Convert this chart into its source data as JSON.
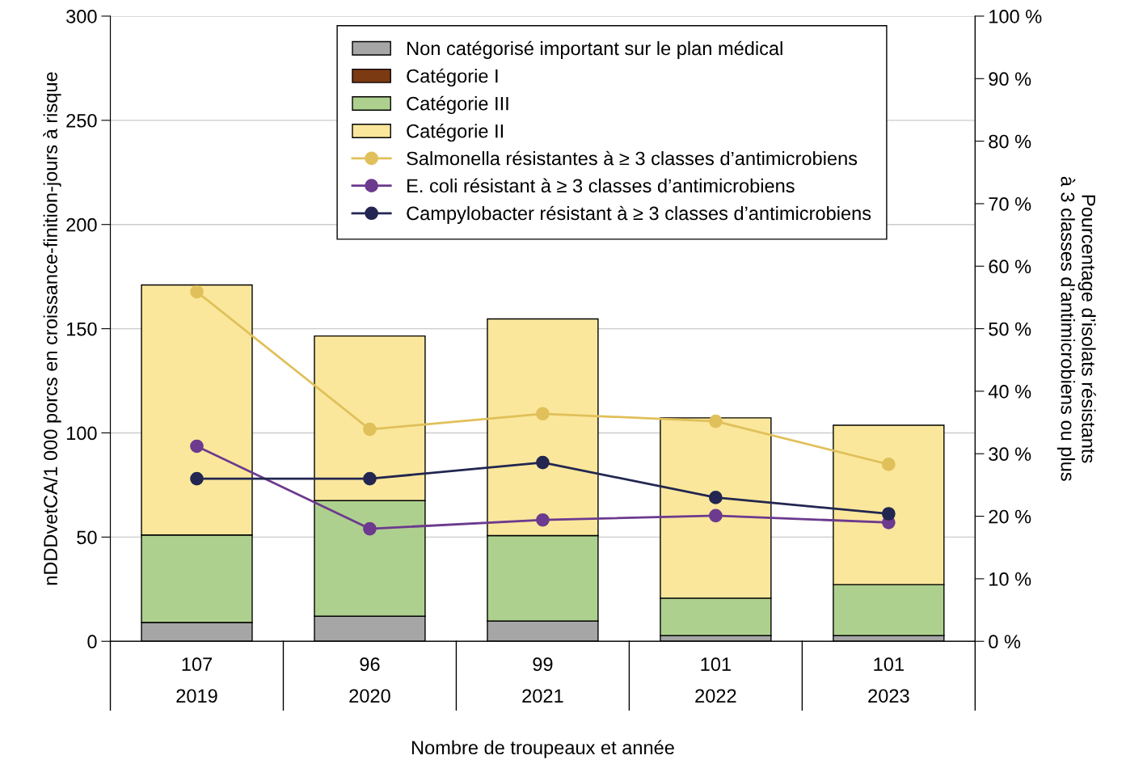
{
  "chart_data": {
    "type": "bar",
    "stacked": true,
    "categories": [
      "107\n2019",
      "96\n2020",
      "99\n2021",
      "101\n2022",
      "101\n2023"
    ],
    "xlabel": "Nombre de troupeaux et année",
    "ylabel": "nDDDvetCA/1 000 porcs en croissance-finition-jours à risque",
    "y2label": "Pourcentage d’isolats résistants\nà 3 classes d’antimicrobiens ou plus",
    "ylim": [
      0,
      300
    ],
    "yticks": [
      0,
      50,
      100,
      150,
      200,
      250,
      300
    ],
    "y2lim": [
      0,
      100
    ],
    "y2ticks": [
      {
        "value": 0,
        "label": "0 %"
      },
      {
        "value": 10,
        "label": "10 %"
      },
      {
        "value": 20,
        "label": "20 %"
      },
      {
        "value": 30,
        "label": "30 %"
      },
      {
        "value": 40,
        "label": "40 %"
      },
      {
        "value": 50,
        "label": "50 %"
      },
      {
        "value": 60,
        "label": "60 %"
      },
      {
        "value": 70,
        "label": "70 %"
      },
      {
        "value": 80,
        "label": "80 %"
      },
      {
        "value": 90,
        "label": "90 %"
      },
      {
        "value": 100,
        "label": "100 %"
      }
    ],
    "grid": "y",
    "legend": "top",
    "marker": "circle",
    "series": [
      {
        "name": "Non catégorisé important sur le plan médical",
        "color": "#a6a6a6",
        "values": [
          9,
          12,
          9.7,
          2.7,
          2.7
        ]
      },
      {
        "name": "Catégorie I",
        "color": "#7b3a12",
        "values": [
          null,
          null,
          null,
          null,
          null
        ]
      },
      {
        "name": "Catégorie III",
        "color": "#aed08e",
        "values": [
          42,
          55.5,
          41,
          18,
          24.5
        ]
      },
      {
        "name": "Catégorie II",
        "color": "#fae79b",
        "values": [
          120,
          79,
          104,
          86.5,
          76.5
        ]
      },
      {
        "name": "Salmonella résistantes à ≥ 3 classes d’antimicrobiens",
        "type": "line",
        "axis": "y2",
        "color": "#e0c05a",
        "values": [
          55.9,
          33.9,
          36.4,
          35.2,
          28.3
        ]
      },
      {
        "name": "E. coli résistant à ≥ 3 classes d’antimicrobiens",
        "type": "line",
        "axis": "y2",
        "color": "#6c3a8e",
        "values": [
          31.2,
          18.0,
          19.4,
          20.1,
          19.0
        ]
      },
      {
        "name": "Campylobacter résistant à ≥ 3 classes d’antimicrobiens",
        "type": "line",
        "axis": "y2",
        "color": "#222650",
        "values": [
          26.0,
          26.0,
          28.6,
          23.0,
          20.4
        ]
      }
    ]
  }
}
